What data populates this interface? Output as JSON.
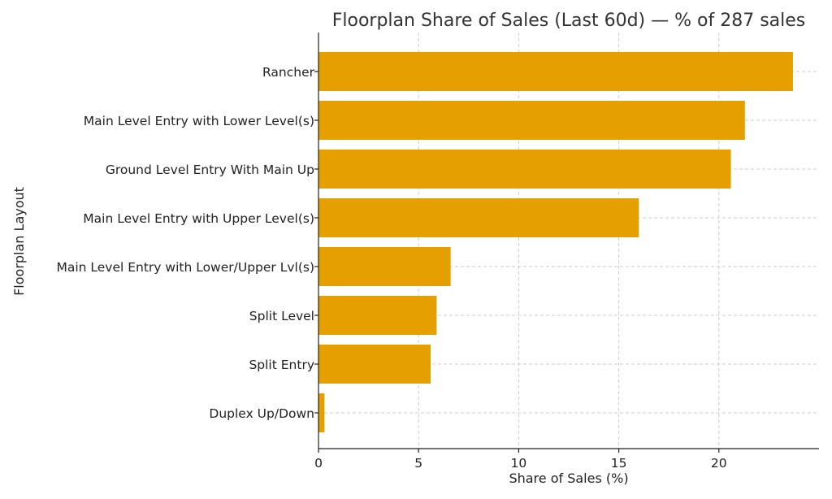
{
  "chart_data": {
    "type": "bar",
    "orientation": "horizontal",
    "title": "Floorplan Share of Sales (Last 60d) — % of 287 sales",
    "xlabel": "Share of Sales (%)",
    "ylabel": "Floorplan Layout",
    "categories": [
      "Rancher",
      "Main Level Entry with Lower Level(s)",
      "Ground Level Entry With Main Up",
      "Main Level Entry with Upper Level(s)",
      "Main Level Entry with Lower/Upper Lvl(s)",
      "Split Level",
      "Split Entry",
      "Duplex Up/Down"
    ],
    "values": [
      23.7,
      21.3,
      20.6,
      16.0,
      6.6,
      5.9,
      5.6,
      0.3
    ],
    "xlim": [
      0,
      25
    ],
    "xticks": [
      0,
      5,
      10,
      15,
      20
    ],
    "grid": true,
    "bar_color": "#E5A000"
  }
}
